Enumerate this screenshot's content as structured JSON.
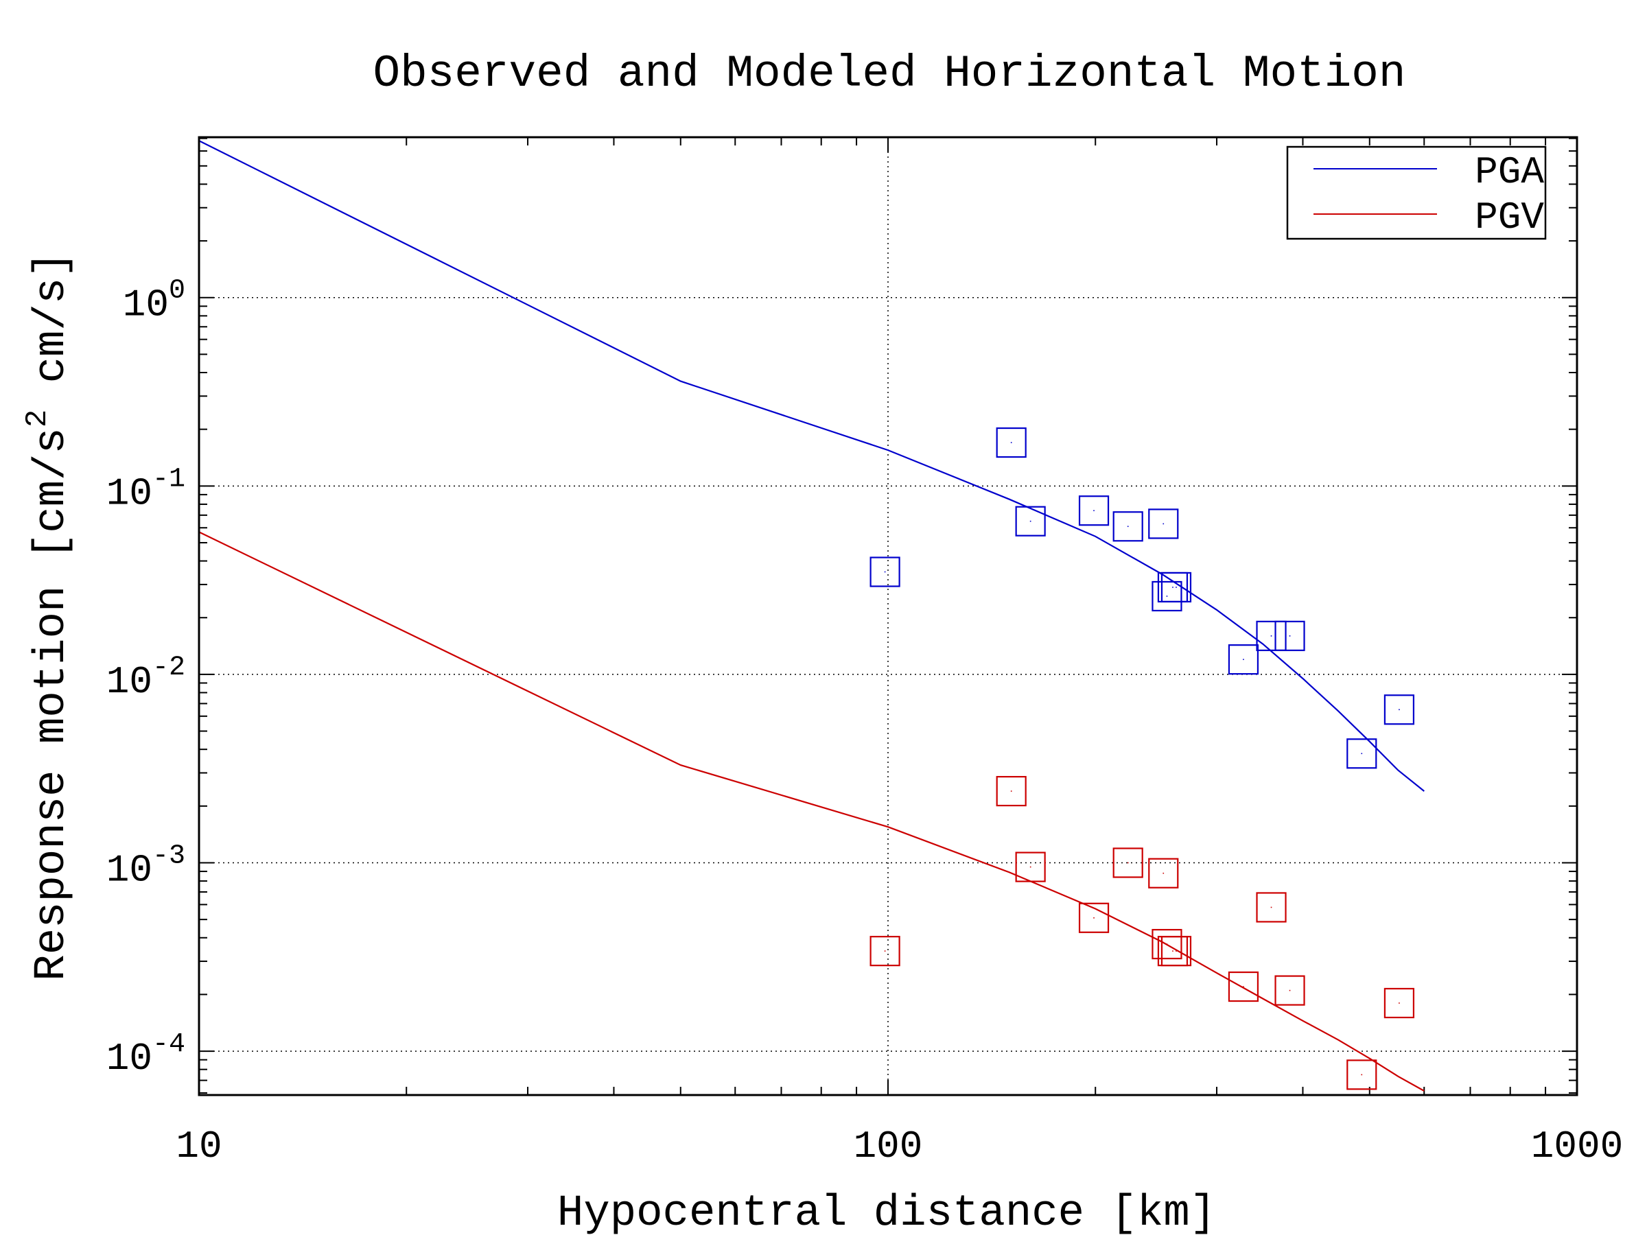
{
  "chart_data": {
    "type": "scatter",
    "title": "Observed and Modeled Horizontal Motion",
    "xlabel": "Hypocentral distance [km]",
    "ylabel": {
      "main": "Response motion [cm/s",
      "sup": "2",
      "tail": " cm/s]"
    },
    "x_scale": "log",
    "y_scale": "log",
    "xlim": [
      10,
      1000
    ],
    "ylim": [
      5.85e-05,
      7.1
    ],
    "x_ticks": [
      {
        "value": 10,
        "label": "10"
      },
      {
        "value": 100,
        "label": "100"
      },
      {
        "value": 1000,
        "label": "1000"
      }
    ],
    "y_ticks": [
      {
        "value": 1,
        "base": "10",
        "exp": "0"
      },
      {
        "value": 0.1,
        "base": "10",
        "exp": "-1"
      },
      {
        "value": 0.01,
        "base": "10",
        "exp": "-2"
      },
      {
        "value": 0.001,
        "base": "10",
        "exp": "-3"
      },
      {
        "value": 0.0001,
        "base": "10",
        "exp": "-4"
      }
    ],
    "grid": true,
    "legend_position": "top-right",
    "series": [
      {
        "name": "PGA",
        "color": "#0000cc",
        "line": {
          "x": [
            10,
            50,
            100,
            150,
            200,
            250,
            300,
            350,
            400,
            450,
            500,
            550,
            600
          ],
          "y": [
            6.8,
            0.36,
            0.155,
            0.085,
            0.054,
            0.034,
            0.022,
            0.0145,
            0.0095,
            0.0064,
            0.0044,
            0.0031,
            0.0024
          ]
        },
        "points": {
          "x": [
            99,
            151,
            161,
            199,
            223,
            251,
            254,
            262,
            259,
            328,
            360,
            383,
            487,
            552
          ],
          "y": [
            0.035,
            0.17,
            0.065,
            0.074,
            0.061,
            0.063,
            0.026,
            0.029,
            0.029,
            0.012,
            0.016,
            0.016,
            0.0038,
            0.0065
          ]
        }
      },
      {
        "name": "PGV",
        "color": "#cc0000",
        "line": {
          "x": [
            10,
            50,
            100,
            150,
            200,
            250,
            300,
            350,
            400,
            450,
            500,
            550,
            600
          ],
          "y": [
            0.057,
            0.0033,
            0.00155,
            0.00089,
            0.00057,
            0.00038,
            0.00026,
            0.00019,
            0.000145,
            0.000115,
            9.15e-05,
            7.35e-05,
            6.15e-05
          ]
        },
        "points": {
          "x": [
            99,
            151,
            161,
            199,
            223,
            251,
            254,
            262,
            259,
            328,
            360,
            383,
            487,
            552
          ],
          "y": [
            0.00034,
            0.0024,
            0.00095,
            0.00051,
            0.001,
            0.00088,
            0.00037,
            0.00034,
            0.00034,
            0.00022,
            0.00058,
            0.00021,
            7.5e-05,
            0.00018
          ]
        }
      }
    ]
  }
}
